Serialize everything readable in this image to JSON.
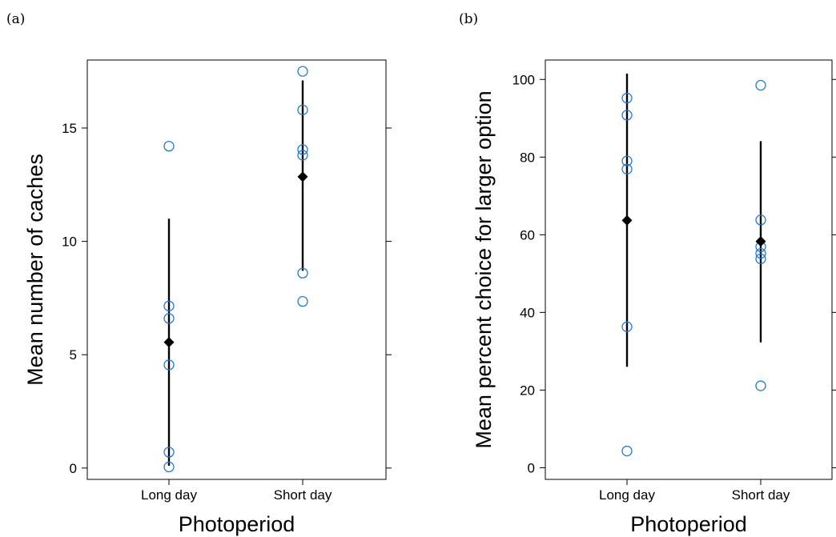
{
  "chart_data": [
    {
      "type": "scatter",
      "panel_label": "(a)",
      "xlabel": "Photoperiod",
      "ylabel": "Mean number of caches",
      "categories": [
        "Long day",
        "Short day"
      ],
      "yticks": [
        0,
        5,
        10,
        15
      ],
      "ylim": [
        -0.5,
        18.0
      ],
      "grid": false,
      "points": [
        {
          "category": "Long day",
          "values": [
            14.2,
            7.15,
            6.6,
            4.55,
            0.7,
            0.05
          ]
        },
        {
          "category": "Short day",
          "values": [
            17.5,
            15.8,
            14.05,
            13.8,
            8.6,
            7.35
          ]
        }
      ],
      "means": [
        {
          "category": "Long day",
          "mean": 5.55,
          "lower": 0.1,
          "upper": 11.0
        },
        {
          "category": "Short day",
          "mean": 12.85,
          "lower": 8.7,
          "upper": 17.1
        }
      ],
      "colors": {
        "points": "#1f7ad6",
        "means": "#000000"
      }
    },
    {
      "type": "scatter",
      "panel_label": "(b)",
      "xlabel": "Photoperiod",
      "ylabel": "Mean percent choice for larger option",
      "categories": [
        "Long day",
        "Short day"
      ],
      "yticks": [
        0,
        20,
        40,
        60,
        80,
        100
      ],
      "ylim": [
        -3,
        105
      ],
      "grid": false,
      "points": [
        {
          "category": "Long day",
          "values": [
            95.2,
            90.8,
            79.0,
            76.9,
            36.3,
            4.3
          ]
        },
        {
          "category": "Short day",
          "values": [
            98.5,
            63.8,
            56.9,
            55.2,
            53.8,
            21.1
          ]
        }
      ],
      "means": [
        {
          "category": "Long day",
          "mean": 63.7,
          "lower": 26.0,
          "upper": 101.5
        },
        {
          "category": "Short day",
          "mean": 58.3,
          "lower": 32.3,
          "upper": 84.1
        }
      ],
      "colors": {
        "points": "#1f7ad6",
        "means": "#000000"
      }
    }
  ]
}
